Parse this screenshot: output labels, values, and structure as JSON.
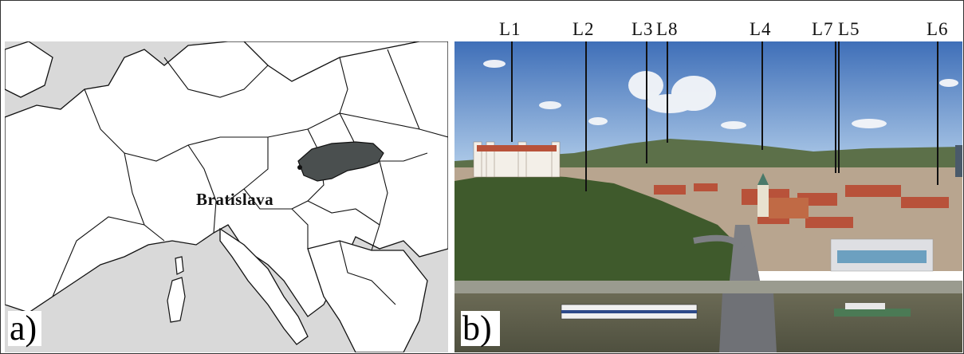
{
  "map": {
    "panel_label": "a)",
    "city": "Bratislava",
    "colors": {
      "sea": "#d9d9d9",
      "land": "#ffffff",
      "border": "#111111",
      "highlight": "#4a4f4f"
    }
  },
  "photo": {
    "panel_label": "b)",
    "locations": [
      "L1",
      "L2",
      "L3",
      "L8",
      "L4",
      "L7",
      "L5",
      "L6"
    ]
  }
}
